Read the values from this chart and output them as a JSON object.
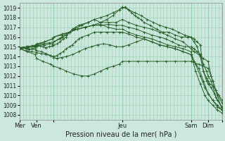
{
  "xlabel": "Pression niveau de la mer( hPa )",
  "ylim": [
    1007.5,
    1019.5
  ],
  "yticks": [
    1008,
    1009,
    1010,
    1011,
    1012,
    1013,
    1014,
    1015,
    1016,
    1017,
    1018,
    1019
  ],
  "bg_color": "#cce8dc",
  "grid_color": "#99ccb8",
  "line_color": "#2a5f2a",
  "xlim": [
    0,
    130
  ],
  "day_vlines": [
    0,
    22,
    66,
    110,
    121
  ],
  "xtick_positions": [
    0,
    11,
    22,
    66,
    110,
    121,
    130
  ],
  "xtick_labels": [
    "Mer",
    "Ven",
    "",
    "Jeu",
    "Sam",
    "Dim",
    ""
  ],
  "lines": [
    {
      "x": [
        0,
        2,
        4,
        6,
        8,
        10,
        11,
        13,
        15,
        17,
        19,
        21,
        22,
        24,
        26,
        28,
        30,
        32,
        34,
        36,
        38,
        40,
        44,
        48,
        52,
        56,
        60,
        64,
        66,
        68,
        70,
        72,
        74,
        76,
        78,
        80,
        84,
        88,
        92,
        96,
        100,
        104,
        108,
        110,
        112,
        114,
        116,
        118,
        120,
        121,
        122,
        124,
        126,
        128,
        130
      ],
      "y": [
        1014.8,
        1014.9,
        1014.8,
        1014.7,
        1014.8,
        1014.9,
        1015.0,
        1015.1,
        1015.0,
        1014.9,
        1015.0,
        1015.1,
        1015.2,
        1015.3,
        1015.5,
        1015.8,
        1016.0,
        1016.5,
        1016.8,
        1017.0,
        1017.2,
        1017.3,
        1017.5,
        1017.8,
        1017.5,
        1017.8,
        1018.2,
        1018.8,
        1019.0,
        1019.1,
        1018.8,
        1018.5,
        1018.2,
        1018.0,
        1017.8,
        1017.5,
        1017.2,
        1016.8,
        1016.5,
        1016.5,
        1016.2,
        1016.0,
        1016.0,
        1016.0,
        1015.8,
        1015.5,
        1015.2,
        1012.5,
        1011.8,
        1011.5,
        1011.2,
        1011.0,
        1010.5,
        1010.0,
        1009.5
      ],
      "markers": true
    },
    {
      "x": [
        0,
        4,
        8,
        11,
        15,
        19,
        22,
        26,
        30,
        35,
        40,
        44,
        48,
        52,
        56,
        60,
        64,
        66,
        70,
        74,
        78,
        82,
        86,
        90,
        94,
        98,
        102,
        106,
        110,
        112,
        114,
        116,
        118,
        120,
        121,
        123,
        125,
        127,
        130
      ],
      "y": [
        1014.9,
        1015.0,
        1015.1,
        1015.2,
        1015.3,
        1015.4,
        1015.5,
        1015.8,
        1016.2,
        1016.8,
        1017.2,
        1017.5,
        1017.8,
        1018.0,
        1018.2,
        1018.5,
        1018.8,
        1019.1,
        1018.8,
        1018.5,
        1018.2,
        1017.8,
        1017.5,
        1017.2,
        1017.0,
        1016.8,
        1016.5,
        1016.2,
        1016.0,
        1015.5,
        1015.0,
        1014.0,
        1012.5,
        1011.5,
        1011.2,
        1010.8,
        1010.2,
        1009.5,
        1008.8
      ],
      "markers": true
    },
    {
      "x": [
        0,
        5,
        10,
        11,
        16,
        21,
        22,
        27,
        32,
        37,
        42,
        47,
        52,
        57,
        62,
        66,
        70,
        75,
        80,
        85,
        90,
        95,
        100,
        105,
        110,
        112,
        115,
        118,
        121,
        123,
        126,
        130
      ],
      "y": [
        1014.8,
        1015.0,
        1015.1,
        1015.2,
        1015.5,
        1015.8,
        1016.0,
        1016.3,
        1016.5,
        1016.8,
        1017.0,
        1017.2,
        1017.5,
        1017.5,
        1017.5,
        1017.8,
        1017.5,
        1017.2,
        1017.0,
        1016.8,
        1016.5,
        1016.2,
        1015.8,
        1015.5,
        1014.8,
        1014.5,
        1014.2,
        1013.8,
        1013.5,
        1012.0,
        1010.5,
        1009.2
      ],
      "markers": true
    },
    {
      "x": [
        0,
        5,
        10,
        11,
        16,
        21,
        22,
        27,
        32,
        37,
        42,
        47,
        52,
        57,
        62,
        66,
        70,
        75,
        80,
        85,
        90,
        94,
        98,
        102,
        106,
        110,
        112,
        114,
        116,
        118,
        120,
        121,
        123,
        126,
        130
      ],
      "y": [
        1014.9,
        1015.0,
        1015.1,
        1015.3,
        1015.5,
        1015.8,
        1016.0,
        1016.2,
        1016.5,
        1016.8,
        1017.0,
        1017.2,
        1017.2,
        1017.3,
        1017.2,
        1017.2,
        1017.0,
        1016.8,
        1016.5,
        1016.2,
        1016.0,
        1015.8,
        1015.5,
        1015.2,
        1015.0,
        1015.0,
        1014.8,
        1014.5,
        1014.2,
        1013.2,
        1012.5,
        1012.0,
        1011.5,
        1009.8,
        1008.8
      ],
      "markers": true
    },
    {
      "x": [
        0,
        5,
        10,
        11,
        16,
        21,
        22,
        27,
        32,
        37,
        42,
        47,
        52,
        57,
        62,
        66,
        70,
        75,
        80,
        85,
        90,
        95,
        100,
        105,
        110,
        112,
        115,
        118,
        121,
        124,
        127,
        130
      ],
      "y": [
        1014.8,
        1014.9,
        1015.0,
        1015.1,
        1015.2,
        1015.3,
        1015.5,
        1016.0,
        1016.5,
        1016.8,
        1017.0,
        1017.2,
        1017.3,
        1017.0,
        1016.8,
        1016.8,
        1016.5,
        1016.2,
        1016.0,
        1015.8,
        1015.5,
        1015.2,
        1015.0,
        1014.8,
        1014.5,
        1013.5,
        1012.8,
        1011.5,
        1010.2,
        1009.5,
        1008.8,
        1008.5
      ],
      "markers": true
    },
    {
      "x": [
        0,
        4,
        8,
        11,
        14,
        17,
        20,
        22,
        24,
        26,
        28,
        30,
        32,
        34,
        36,
        38,
        40,
        44,
        48,
        52,
        56,
        60,
        64,
        66,
        70,
        75,
        80,
        85,
        90,
        95,
        100,
        105,
        110,
        113,
        116,
        119,
        121,
        124,
        127,
        130
      ],
      "y": [
        1014.8,
        1014.6,
        1014.5,
        1014.4,
        1014.3,
        1014.2,
        1014.1,
        1014.0,
        1014.1,
        1014.3,
        1014.5,
        1014.8,
        1015.0,
        1015.2,
        1015.5,
        1015.8,
        1016.0,
        1016.2,
        1016.5,
        1016.5,
        1016.5,
        1016.5,
        1016.5,
        1016.5,
        1016.3,
        1016.0,
        1015.8,
        1015.5,
        1015.2,
        1015.0,
        1014.8,
        1014.5,
        1014.2,
        1012.5,
        1011.2,
        1010.0,
        1009.5,
        1009.0,
        1008.5,
        1008.2
      ],
      "markers": true
    },
    {
      "x": [
        0,
        5,
        10,
        11,
        14,
        17,
        20,
        22,
        24,
        27,
        30,
        34,
        38,
        42,
        46,
        50,
        54,
        58,
        62,
        66,
        70,
        75,
        80,
        85,
        90,
        95,
        100,
        105,
        110,
        113,
        116,
        119,
        121,
        124,
        127,
        130
      ],
      "y": [
        1014.9,
        1014.8,
        1014.7,
        1014.6,
        1014.5,
        1014.3,
        1014.1,
        1013.9,
        1013.8,
        1013.9,
        1014.0,
        1014.2,
        1014.5,
        1014.8,
        1015.0,
        1015.2,
        1015.3,
        1015.2,
        1015.0,
        1015.0,
        1015.2,
        1015.5,
        1015.8,
        1015.5,
        1015.2,
        1015.0,
        1014.8,
        1014.5,
        1014.2,
        1013.2,
        1012.0,
        1010.8,
        1010.2,
        1009.5,
        1009.0,
        1008.5
      ],
      "markers": true
    },
    {
      "x": [
        0,
        5,
        10,
        11,
        15,
        20,
        22,
        26,
        30,
        35,
        40,
        44,
        48,
        52,
        56,
        60,
        64,
        66,
        70,
        76,
        82,
        88,
        94,
        100,
        106,
        110,
        115,
        121,
        124,
        127,
        130
      ],
      "y": [
        1014.8,
        1014.5,
        1014.2,
        1013.8,
        1013.5,
        1013.2,
        1013.0,
        1012.8,
        1012.5,
        1012.2,
        1012.0,
        1012.0,
        1012.2,
        1012.5,
        1012.8,
        1013.0,
        1013.2,
        1013.5,
        1013.5,
        1013.5,
        1013.5,
        1013.5,
        1013.5,
        1013.5,
        1013.5,
        1013.5,
        1013.2,
        1012.8,
        1011.5,
        1010.0,
        1008.5
      ],
      "markers": true
    }
  ]
}
